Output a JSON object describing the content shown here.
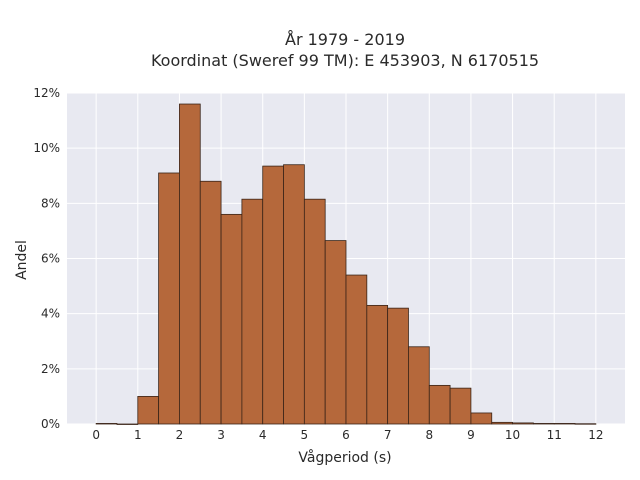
{
  "chart_data": {
    "type": "bar",
    "title_lines": [
      "År 1979 - 2019",
      "Koordinat (Sweref 99 TM): E 453903, N 6170515"
    ],
    "xlabel": "Vågperiod (s)",
    "ylabel": "Andel",
    "xlim": [
      -0.7,
      12.7
    ],
    "ylim": [
      0,
      12
    ],
    "x_ticks": [
      0,
      1,
      2,
      3,
      4,
      5,
      6,
      7,
      8,
      9,
      10,
      11,
      12
    ],
    "y_ticks": [
      0,
      2,
      4,
      6,
      8,
      10,
      12
    ],
    "y_tick_suffix": "%",
    "bin_width": 0.5,
    "bins": [
      {
        "start": 0.0,
        "value": 0.02
      },
      {
        "start": 0.5,
        "value": 0.0
      },
      {
        "start": 1.0,
        "value": 1.0
      },
      {
        "start": 1.5,
        "value": 9.1
      },
      {
        "start": 2.0,
        "value": 11.6
      },
      {
        "start": 2.5,
        "value": 8.8
      },
      {
        "start": 3.0,
        "value": 7.6
      },
      {
        "start": 3.5,
        "value": 8.15
      },
      {
        "start": 4.0,
        "value": 9.35
      },
      {
        "start": 4.5,
        "value": 9.4
      },
      {
        "start": 5.0,
        "value": 8.15
      },
      {
        "start": 5.5,
        "value": 6.65
      },
      {
        "start": 6.0,
        "value": 5.4
      },
      {
        "start": 6.5,
        "value": 4.3
      },
      {
        "start": 7.0,
        "value": 4.2
      },
      {
        "start": 7.5,
        "value": 2.8
      },
      {
        "start": 8.0,
        "value": 1.4
      },
      {
        "start": 8.5,
        "value": 1.3
      },
      {
        "start": 9.0,
        "value": 0.4
      },
      {
        "start": 9.5,
        "value": 0.06
      },
      {
        "start": 10.0,
        "value": 0.04
      },
      {
        "start": 10.5,
        "value": 0.02
      },
      {
        "start": 11.0,
        "value": 0.02
      },
      {
        "start": 11.5,
        "value": 0.01
      }
    ],
    "grid": true,
    "colors": {
      "bar_fill": "#b5683b",
      "bar_edge": "#3a2418",
      "plot_bg": "#e8e9f1",
      "grid": "#ffffff"
    }
  }
}
